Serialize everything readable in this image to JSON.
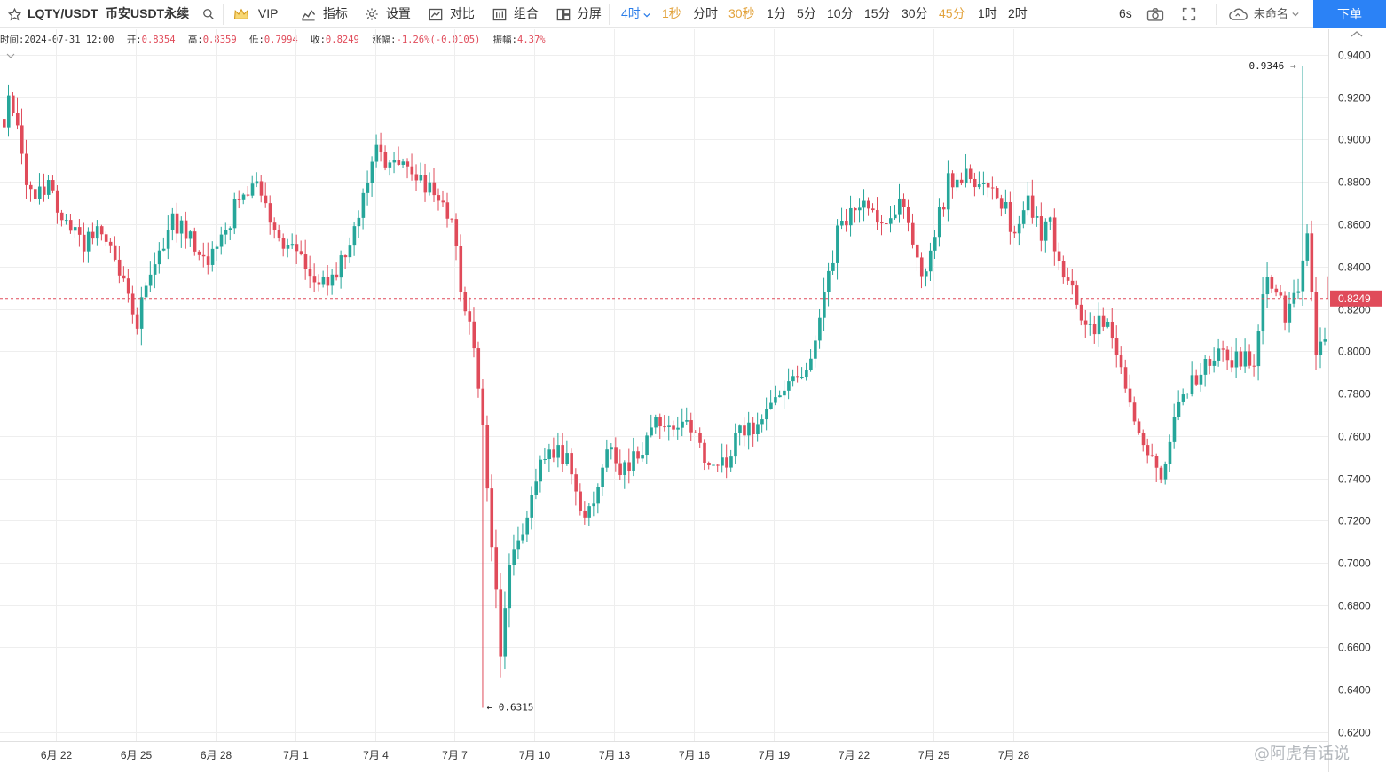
{
  "toolbar": {
    "symbol": "LQTY/USDT",
    "market": "币安USDT永续",
    "vip": "VIP",
    "indicators": "指标",
    "settings": "设置",
    "compare": "对比",
    "combo": "组合",
    "split": "分屏",
    "intervals": [
      {
        "label": "4时",
        "state": "active"
      },
      {
        "label": "1秒",
        "state": "vip"
      },
      {
        "label": "分时",
        "state": "normal"
      },
      {
        "label": "30秒",
        "state": "vip"
      },
      {
        "label": "1分",
        "state": "normal"
      },
      {
        "label": "5分",
        "state": "normal"
      },
      {
        "label": "10分",
        "state": "normal"
      },
      {
        "label": "15分",
        "state": "normal"
      },
      {
        "label": "30分",
        "state": "normal"
      },
      {
        "label": "45分",
        "state": "vip"
      },
      {
        "label": "1时",
        "state": "normal"
      },
      {
        "label": "2时",
        "state": "normal"
      }
    ],
    "refresh": "6s",
    "cloud_name": "未命名",
    "order_button": "下单"
  },
  "info_bar": {
    "time_label": "时间:",
    "time": "2024-07-31 12:00",
    "open_label": "开:",
    "open": "0.8354",
    "high_label": "高:",
    "high": "0.8359",
    "low_label": "低:",
    "low": "0.7994",
    "close_label": "收:",
    "close": "0.8249",
    "change_label": "涨幅:",
    "change": "-1.26%(-0.0105)",
    "amplitude_label": "振幅:",
    "amplitude": "4.37%"
  },
  "watermark": "@阿虎有话说",
  "colors": {
    "up": "#26a69a",
    "down": "#e04b5a",
    "grid": "#eeeeee",
    "axis_text": "#333333",
    "accent": "#2b82f6",
    "vip_gold": "#e2a23b"
  },
  "chart_data": {
    "type": "candlestick",
    "title": "",
    "xlabel": "",
    "ylabel": "",
    "interval": "4h",
    "x_tick_labels": [
      "6月 22",
      "6月 25",
      "6月 28",
      "7月 1",
      "7月 4",
      "7月 7",
      "7月 10",
      "7月 13",
      "7月 16",
      "7月 19",
      "7月 22",
      "7月 25",
      "7月 28"
    ],
    "y_ticks": [
      "0.9400",
      "0.9200",
      "0.9000",
      "0.8800",
      "0.8600",
      "0.8400",
      "0.8200",
      "0.8000",
      "0.7800",
      "0.7600",
      "0.7400",
      "0.7200",
      "0.7000",
      "0.6800",
      "0.6600",
      "0.6400",
      "0.6200"
    ],
    "ylim": [
      0.6185,
      0.9505
    ],
    "grid": true,
    "last_price": "0.8249",
    "annotations": {
      "max": "0.9346",
      "min": "0.6315"
    },
    "anchor_points": [
      [
        0,
        0.905
      ],
      [
        1,
        0.918
      ],
      [
        3,
        0.902
      ],
      [
        6,
        0.872
      ],
      [
        10,
        0.88
      ],
      [
        14,
        0.858
      ],
      [
        18,
        0.851
      ],
      [
        22,
        0.86
      ],
      [
        26,
        0.836
      ],
      [
        28,
        0.824
      ],
      [
        30,
        0.815
      ],
      [
        34,
        0.838
      ],
      [
        38,
        0.862
      ],
      [
        42,
        0.852
      ],
      [
        46,
        0.843
      ],
      [
        50,
        0.857
      ],
      [
        54,
        0.878
      ],
      [
        58,
        0.876
      ],
      [
        62,
        0.855
      ],
      [
        66,
        0.846
      ],
      [
        70,
        0.832
      ],
      [
        74,
        0.832
      ],
      [
        78,
        0.854
      ],
      [
        80,
        0.865
      ],
      [
        84,
        0.895
      ],
      [
        88,
        0.888
      ],
      [
        90,
        0.893
      ],
      [
        94,
        0.88
      ],
      [
        98,
        0.87
      ],
      [
        101,
        0.862
      ],
      [
        103,
        0.83
      ],
      [
        106,
        0.805
      ],
      [
        108,
        0.768
      ],
      [
        110,
        0.71
      ],
      [
        112,
        0.657
      ],
      [
        114,
        0.7
      ],
      [
        117,
        0.714
      ],
      [
        120,
        0.742
      ],
      [
        123,
        0.756
      ],
      [
        127,
        0.747
      ],
      [
        130,
        0.72
      ],
      [
        133,
        0.725
      ],
      [
        136,
        0.755
      ],
      [
        139,
        0.742
      ],
      [
        143,
        0.75
      ],
      [
        147,
        0.765
      ],
      [
        151,
        0.765
      ],
      [
        155,
        0.762
      ],
      [
        159,
        0.748
      ],
      [
        163,
        0.747
      ],
      [
        166,
        0.765
      ],
      [
        170,
        0.765
      ],
      [
        173,
        0.779
      ],
      [
        177,
        0.787
      ],
      [
        180,
        0.783
      ],
      [
        183,
        0.808
      ],
      [
        186,
        0.833
      ],
      [
        188,
        0.855
      ],
      [
        192,
        0.869
      ],
      [
        196,
        0.867
      ],
      [
        199,
        0.857
      ],
      [
        202,
        0.87
      ],
      [
        205,
        0.852
      ],
      [
        207,
        0.836
      ],
      [
        210,
        0.855
      ],
      [
        213,
        0.88
      ],
      [
        217,
        0.885
      ],
      [
        220,
        0.878
      ],
      [
        223,
        0.88
      ],
      [
        226,
        0.867
      ],
      [
        228,
        0.855
      ],
      [
        231,
        0.87
      ],
      [
        234,
        0.857
      ],
      [
        236,
        0.862
      ],
      [
        238,
        0.838
      ],
      [
        240,
        0.832
      ],
      [
        243,
        0.816
      ],
      [
        246,
        0.812
      ],
      [
        249,
        0.812
      ],
      [
        252,
        0.795
      ],
      [
        255,
        0.768
      ],
      [
        258,
        0.752
      ],
      [
        261,
        0.742
      ],
      [
        264,
        0.77
      ],
      [
        266,
        0.777
      ],
      [
        270,
        0.792
      ],
      [
        273,
        0.797
      ],
      [
        276,
        0.797
      ],
      [
        279,
        0.794
      ],
      [
        282,
        0.797
      ],
      [
        285,
        0.836
      ],
      [
        287,
        0.83
      ],
      [
        289,
        0.816
      ],
      [
        291,
        0.823
      ],
      [
        294,
        0.853
      ],
      [
        296,
        0.8
      ],
      [
        298,
        0.805
      ],
      [
        299,
        0.8354
      ]
    ],
    "last_candle": {
      "date": "2024-07-31 12:00",
      "open": 0.8354,
      "high": 0.8359,
      "low": 0.7994,
      "close": 0.8249
    }
  }
}
